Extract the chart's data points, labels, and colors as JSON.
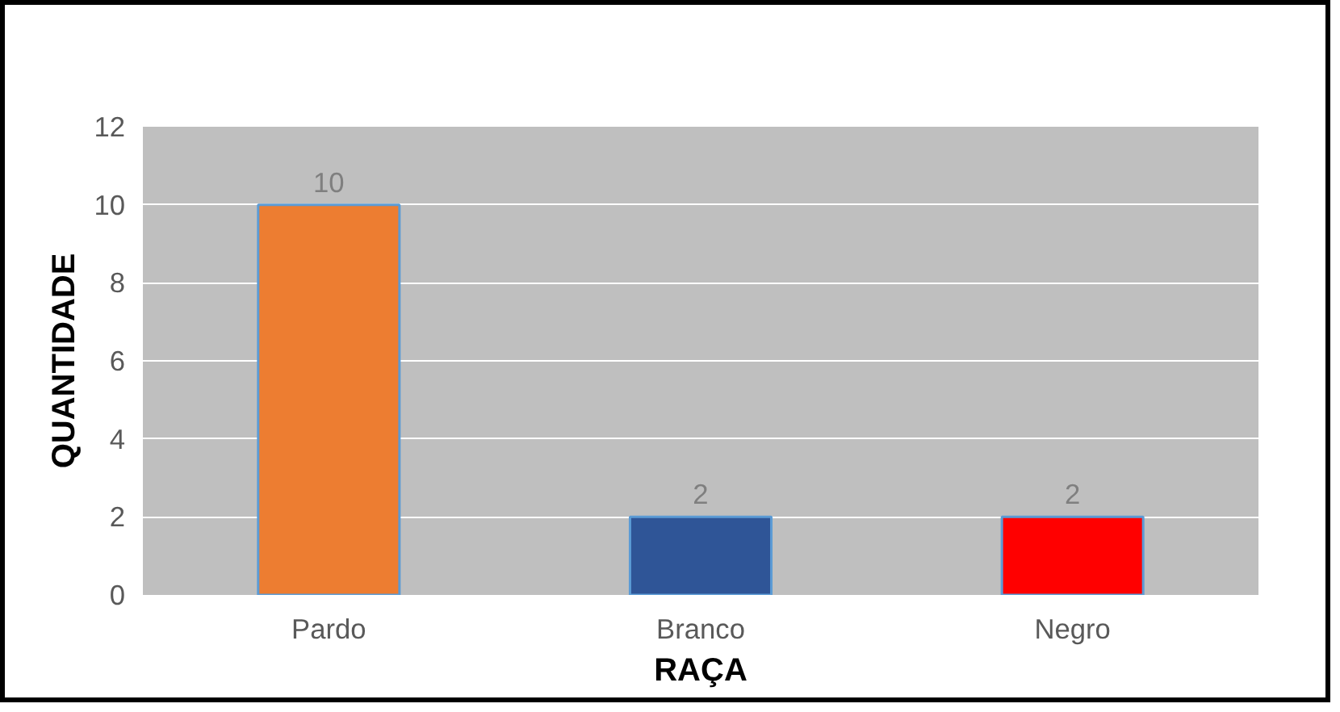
{
  "chart_data": {
    "type": "bar",
    "xlabel": "RAÇA",
    "ylabel": "QUANTIDADE",
    "categories": [
      "Pardo",
      "Branco",
      "Negro"
    ],
    "values": [
      10,
      2,
      2
    ],
    "colors": [
      "#ed7d31",
      "#2f5597",
      "#ff0000"
    ],
    "ylim": [
      0,
      12
    ],
    "yticks": [
      0,
      2,
      4,
      6,
      8,
      10,
      12
    ],
    "grid": "y",
    "data_labels": true
  }
}
